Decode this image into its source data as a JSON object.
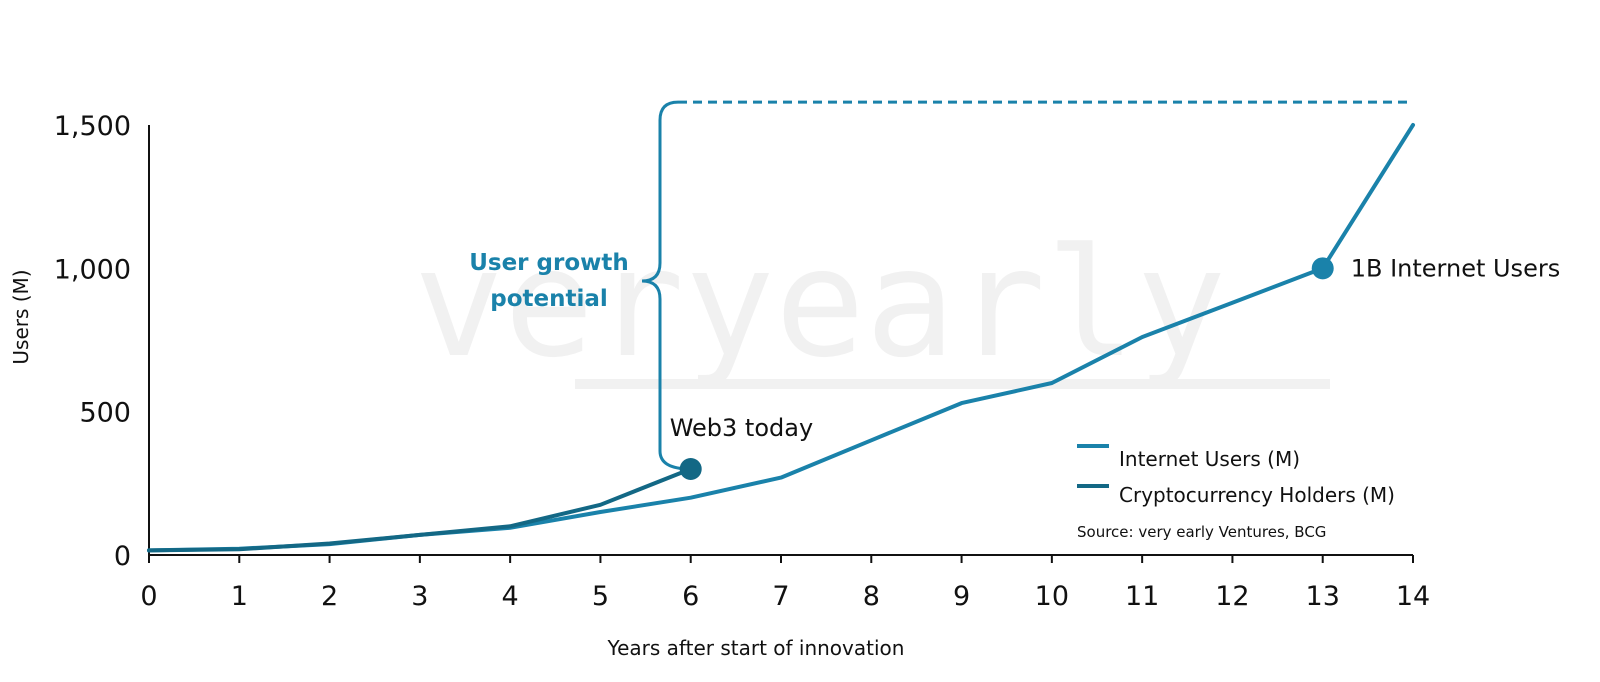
{
  "chart_data": {
    "type": "line",
    "watermark": "veryearly",
    "x": [
      0,
      1,
      2,
      3,
      4,
      5,
      6,
      7,
      8,
      9,
      10,
      11,
      12,
      13,
      14
    ],
    "series": [
      {
        "name": "Internet Users (M)",
        "color": "#1a82aa",
        "x": [
          0,
          1,
          2,
          3,
          4,
          5,
          6,
          7,
          8,
          9,
          10,
          11,
          12,
          13,
          14
        ],
        "values": [
          16,
          22,
          38,
          70,
          95,
          150,
          200,
          270,
          400,
          530,
          600,
          760,
          880,
          1000,
          1500
        ]
      },
      {
        "name": "Cryptocurrency Holders (M)",
        "color": "#136885",
        "x": [
          0,
          1,
          2,
          3,
          4,
          5,
          6
        ],
        "values": [
          16,
          20,
          40,
          70,
          100,
          175,
          300
        ]
      }
    ],
    "xlabel": "Years after start of innovation",
    "ylabel": "Users (M)",
    "xlim": [
      0,
      14
    ],
    "ylim": [
      0,
      1500
    ],
    "y_ticks": [
      0,
      500,
      1000,
      1500
    ],
    "y_tick_labels": [
      "0",
      "500",
      "1,000",
      "1,500"
    ],
    "x_tick_labels": [
      "0",
      "1",
      "2",
      "3",
      "4",
      "5",
      "6",
      "7",
      "8",
      "9",
      "10",
      "11",
      "12",
      "13",
      "14"
    ],
    "grid": false,
    "legend_position": "bottom-right",
    "annotations": {
      "web3": {
        "label": "Web3 today",
        "x": 6,
        "y": 300
      },
      "internet_1b": {
        "label": "1B Internet Users",
        "x": 13,
        "y": 1000
      },
      "growth": {
        "lines": [
          "User growth",
          "potential"
        ],
        "from_y": 300,
        "to_y": 1580,
        "color": "#1a82aa"
      }
    },
    "source": "Source: very early Ventures, BCG"
  }
}
